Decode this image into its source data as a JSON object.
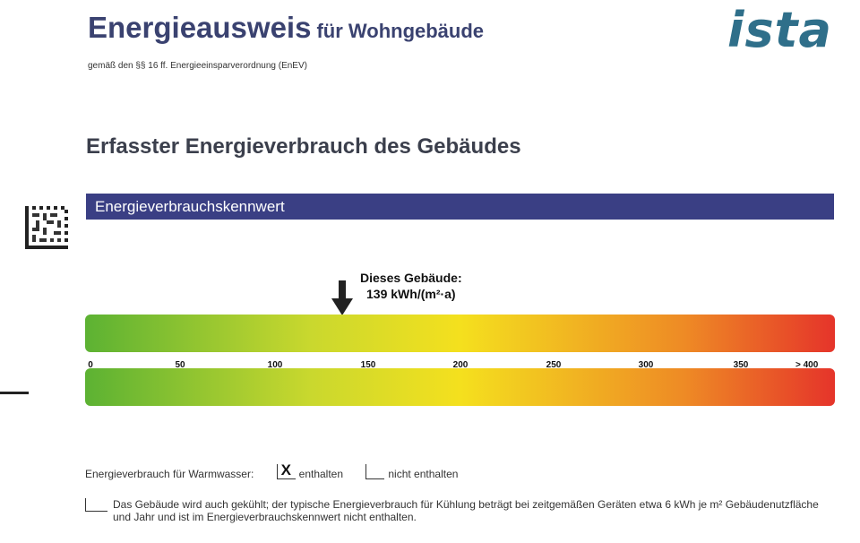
{
  "header": {
    "title": "Energieausweis",
    "title_suffix": "für Wohngebäude",
    "subtitle": "gemäß den §§ 16 ff. Energieeinsparverordnung (EnEV)",
    "logo_text": "ista"
  },
  "section": {
    "title": "Erfasster Energieverbrauch des Gebäudes",
    "bar_label": "Energieverbrauchskennwert"
  },
  "indicator": {
    "label_line1": "Dieses Gebäude:",
    "label_line2": "139 kWh/(m²·a)",
    "value": 139
  },
  "scale": {
    "min": 0,
    "max": 400,
    "ticks": [
      "0",
      "50",
      "100",
      "150",
      "200",
      "250",
      "300",
      "350",
      "> 400"
    ],
    "gradient_colors": [
      "#5cb233",
      "#f4e01e",
      "#e5342a"
    ]
  },
  "warmwasser": {
    "label": "Energieverbrauch für Warmwasser:",
    "checked_mark": "X",
    "option_included": "enthalten",
    "option_not_included": "nicht enthalten"
  },
  "kuehlung": {
    "text": "Das Gebäude wird auch gekühlt; der typische Energieverbrauch für Kühlung beträgt bei zeitgemäßen Geräten etwa 6 kWh je m² Gebäudenutzfläche und Jahr und ist im Energieverbrauchskennwert nicht enthalten."
  }
}
